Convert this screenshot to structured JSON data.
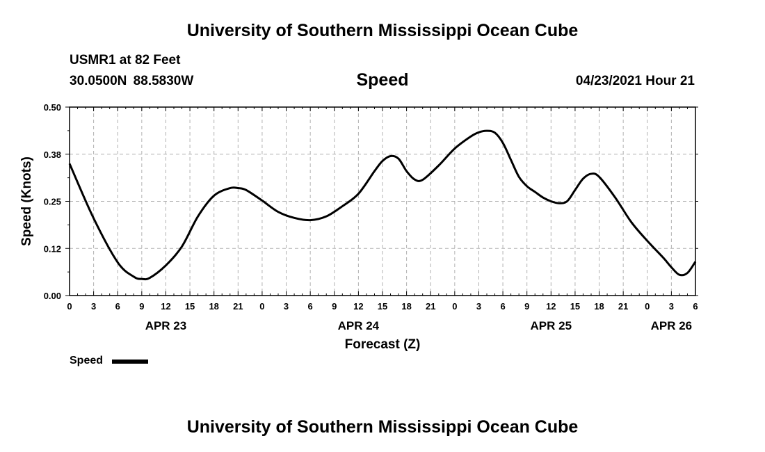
{
  "header": {
    "title": "University of Southern Mississippi Ocean Cube",
    "station": "USMR1 at 82 Feet",
    "coordinates": "30.0500N  88.5830W",
    "datetime": "04/23/2021 Hour 21"
  },
  "footer": {
    "title": "University of Southern Mississippi Ocean Cube"
  },
  "legend": {
    "label": "Speed",
    "color": "#000000"
  },
  "chart_data": {
    "type": "line",
    "title": "Speed",
    "xlabel": "Forecast (Z)",
    "ylabel": "Speed (Knots)",
    "ylim": [
      0,
      0.5
    ],
    "xlim": [
      0,
      78
    ],
    "grid": true,
    "legend_position": "bottom-left",
    "y_ticks": [
      "0.00",
      "0.12",
      "0.25",
      "0.38",
      "0.50"
    ],
    "y_tick_values": [
      0,
      0.125,
      0.25,
      0.375,
      0.5
    ],
    "x_tick_labels": [
      "0",
      "3",
      "6",
      "9",
      "12",
      "15",
      "18",
      "21",
      "0",
      "3",
      "6",
      "9",
      "12",
      "15",
      "18",
      "21",
      "0",
      "3",
      "6",
      "9",
      "12",
      "15",
      "18",
      "21",
      "0",
      "3",
      "6"
    ],
    "date_labels": [
      {
        "label": "APR 23",
        "hour": 12
      },
      {
        "label": "APR 24",
        "hour": 36
      },
      {
        "label": "APR 25",
        "hour": 60
      },
      {
        "label": "APR 26",
        "hour": 75
      }
    ],
    "series": [
      {
        "name": "Speed",
        "x": [
          0,
          3,
          6,
          8,
          9,
          10,
          12,
          14,
          16,
          18,
          20,
          21,
          22,
          24,
          26,
          28,
          30,
          32,
          34,
          36,
          38,
          39,
          40,
          41,
          42,
          43,
          44,
          46,
          48,
          50,
          51,
          52,
          53,
          54,
          55,
          56,
          57,
          58,
          59,
          60,
          61,
          62,
          63,
          64,
          65,
          66,
          68,
          70,
          72,
          74,
          75,
          76,
          77,
          78
        ],
        "values": [
          0.35,
          0.205,
          0.088,
          0.05,
          0.044,
          0.047,
          0.08,
          0.13,
          0.21,
          0.265,
          0.285,
          0.285,
          0.28,
          0.252,
          0.222,
          0.206,
          0.2,
          0.21,
          0.237,
          0.27,
          0.33,
          0.357,
          0.37,
          0.363,
          0.33,
          0.308,
          0.307,
          0.345,
          0.39,
          0.422,
          0.433,
          0.437,
          0.432,
          0.405,
          0.36,
          0.315,
          0.29,
          0.275,
          0.26,
          0.25,
          0.245,
          0.25,
          0.28,
          0.31,
          0.323,
          0.315,
          0.26,
          0.195,
          0.145,
          0.1,
          0.075,
          0.055,
          0.06,
          0.09
        ]
      }
    ]
  }
}
